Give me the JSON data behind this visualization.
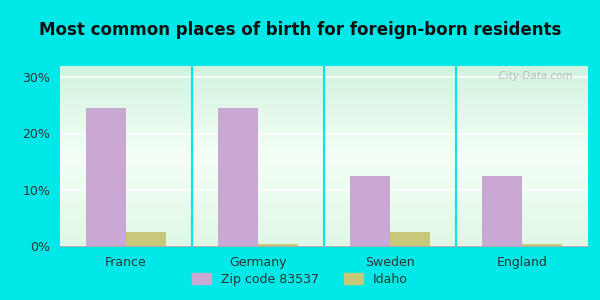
{
  "title": "Most common places of birth for foreign-born residents",
  "categories": [
    "France",
    "Germany",
    "Sweden",
    "England"
  ],
  "zip_values": [
    24.5,
    24.5,
    12.5,
    12.5
  ],
  "idaho_values": [
    2.5,
    0.4,
    2.5,
    0.4
  ],
  "zip_color": "#c9a8d4",
  "idaho_color": "#c8c87a",
  "zip_label": "Zip code 83537",
  "idaho_label": "Idaho",
  "yticks": [
    0,
    10,
    20,
    30
  ],
  "ytick_labels": [
    "0%",
    "10%",
    "20%",
    "30%"
  ],
  "ylim": [
    0,
    32
  ],
  "bar_width": 0.3,
  "background_outer": "#00e8e8",
  "title_fontsize": 12,
  "tick_fontsize": 9,
  "legend_fontsize": 9,
  "watermark": "  City-Data.com"
}
